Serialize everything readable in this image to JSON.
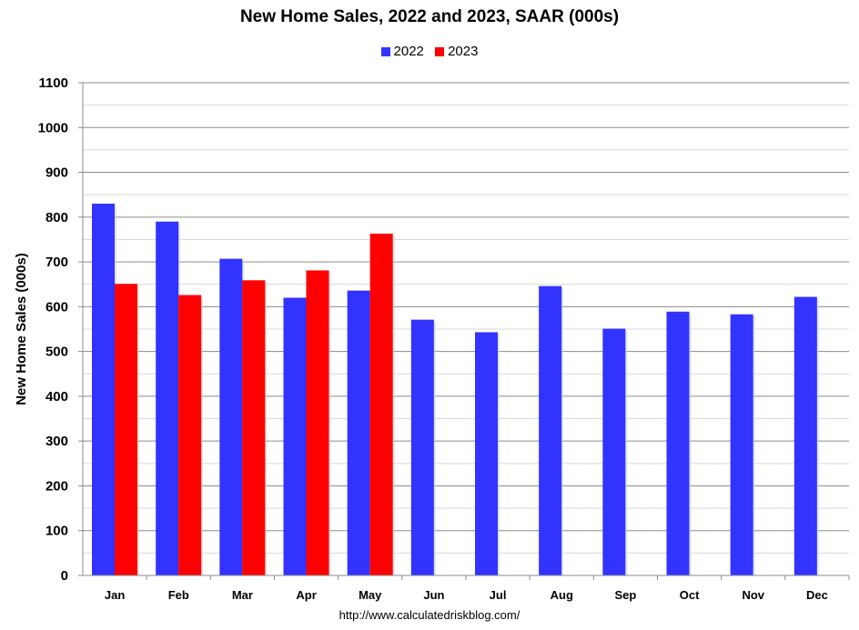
{
  "chart_data": {
    "type": "bar",
    "title": "New Home Sales,  2022 and 2023, SAAR (000s)",
    "ylabel": "New Home Sales (000s)",
    "xlabel": "",
    "ylim": [
      0,
      1100
    ],
    "y_ticks": [
      0,
      100,
      200,
      300,
      400,
      500,
      600,
      700,
      800,
      900,
      1000,
      1100
    ],
    "grid": true,
    "legend_position": "top-center",
    "categories": [
      "Jan",
      "Feb",
      "Mar",
      "Apr",
      "May",
      "Jun",
      "Jul",
      "Aug",
      "Sep",
      "Oct",
      "Nov",
      "Dec"
    ],
    "series": [
      {
        "name": "2022",
        "color": "#3333ff",
        "values": [
          830,
          790,
          707,
          620,
          636,
          571,
          543,
          646,
          551,
          589,
          583,
          622
        ]
      },
      {
        "name": "2023",
        "color": "#ff0000",
        "values": [
          651,
          626,
          659,
          681,
          763,
          null,
          null,
          null,
          null,
          null,
          null,
          null
        ]
      }
    ]
  },
  "source_text": "http://www.calculatedriskblog.com/"
}
